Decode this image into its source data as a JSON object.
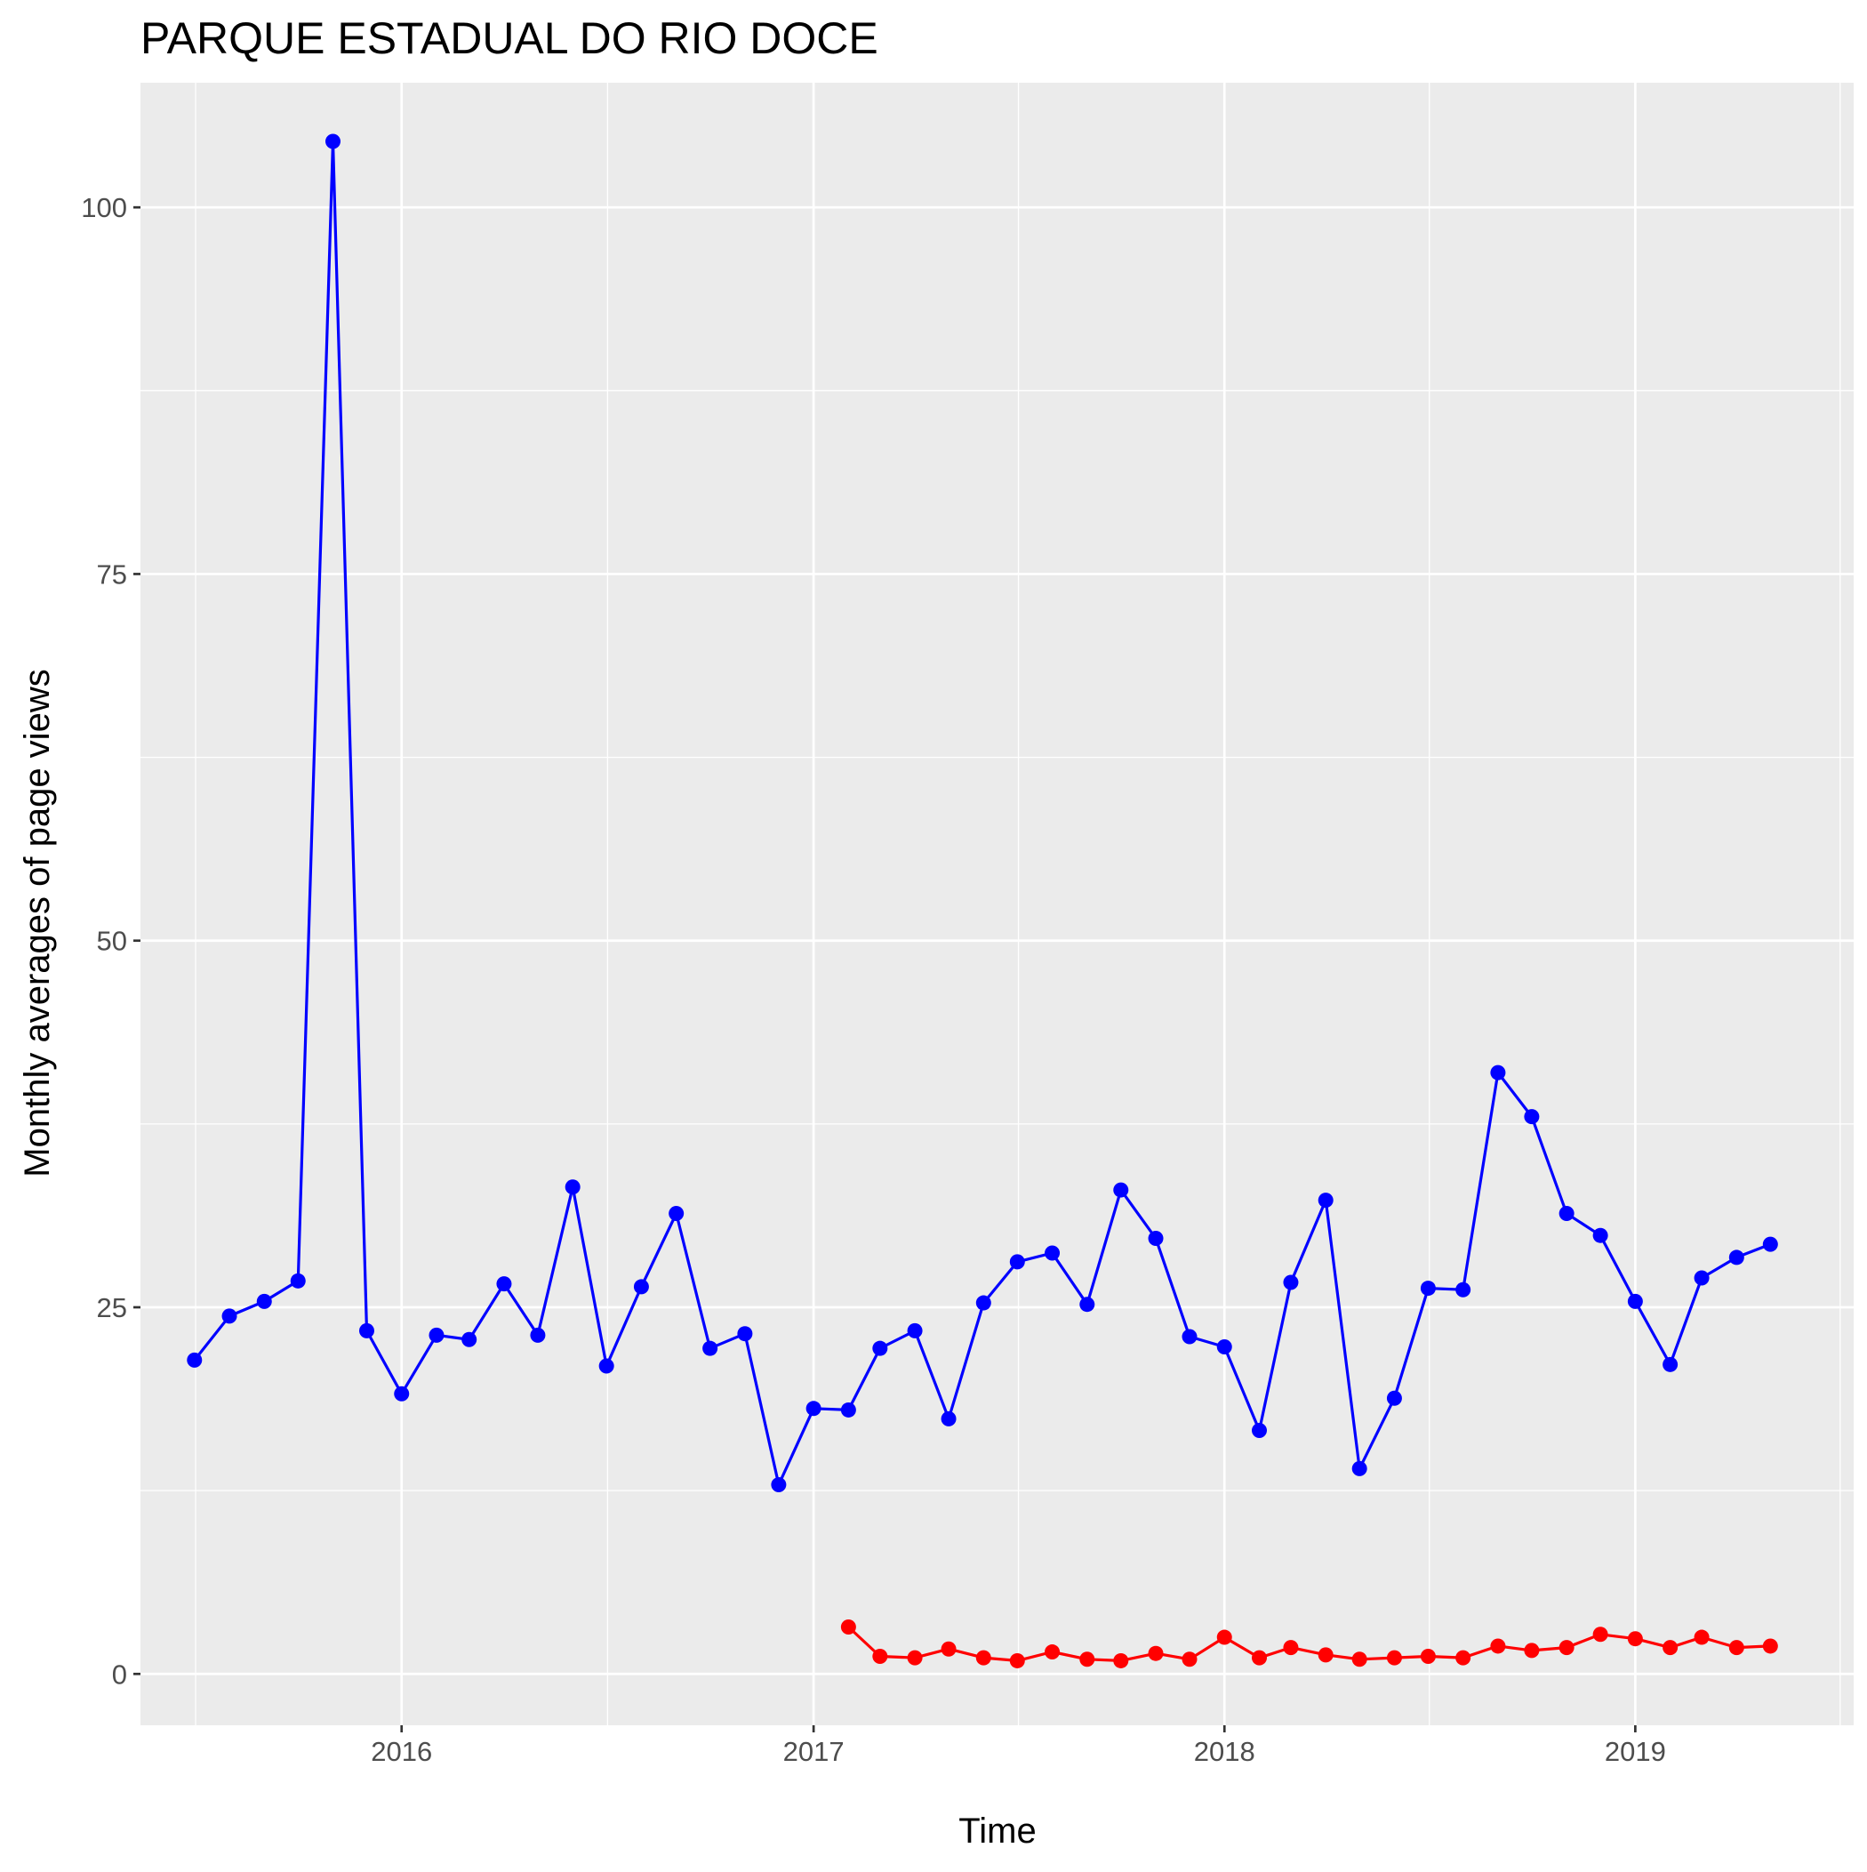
{
  "chart_data": {
    "type": "line",
    "title": "PARQUE ESTADUAL DO RIO DOCE",
    "xlabel": "Time",
    "ylabel": "Monthly averages of page views",
    "xlim": [
      "2015-05-14",
      "2019-07-14"
    ],
    "ylim": [
      -3.5,
      108.5
    ],
    "x_ticks": [
      "2016",
      "2017",
      "2018",
      "2019"
    ],
    "x_tick_dates": [
      "2016-01-01",
      "2017-01-01",
      "2018-01-01",
      "2019-01-01"
    ],
    "y_ticks": [
      0,
      25,
      50,
      75,
      100
    ],
    "grid": true,
    "legend": "none",
    "series": [
      {
        "color": "#0000ff",
        "x": [
          "2015-07-01",
          "2015-08-01",
          "2015-09-01",
          "2015-10-01",
          "2015-11-01",
          "2015-12-01",
          "2016-01-01",
          "2016-02-01",
          "2016-03-01",
          "2016-04-01",
          "2016-05-01",
          "2016-06-01",
          "2016-07-01",
          "2016-08-01",
          "2016-09-01",
          "2016-10-01",
          "2016-11-01",
          "2016-12-01",
          "2017-01-01",
          "2017-02-01",
          "2017-03-01",
          "2017-04-01",
          "2017-05-01",
          "2017-06-01",
          "2017-07-01",
          "2017-08-01",
          "2017-09-01",
          "2017-10-01",
          "2017-11-01",
          "2017-12-01",
          "2018-01-01",
          "2018-02-01",
          "2018-03-01",
          "2018-04-01",
          "2018-05-01",
          "2018-06-01",
          "2018-07-01",
          "2018-08-01",
          "2018-09-01",
          "2018-10-01",
          "2018-11-01",
          "2018-12-01",
          "2019-01-01",
          "2019-02-01",
          "2019-03-01",
          "2019-04-01",
          "2019-05-01"
        ],
        "values": [
          21.4,
          24.4,
          25.4,
          26.8,
          104.5,
          23.4,
          19.1,
          23.1,
          22.8,
          26.6,
          23.1,
          33.2,
          21.0,
          26.4,
          31.4,
          22.2,
          23.2,
          12.9,
          18.1,
          18.0,
          22.2,
          23.4,
          17.4,
          25.3,
          28.1,
          28.7,
          25.2,
          33.0,
          29.7,
          23.0,
          22.3,
          16.6,
          26.7,
          32.3,
          14.0,
          18.8,
          26.3,
          26.2,
          41.0,
          38.0,
          31.4,
          29.9,
          25.4,
          21.1,
          27.0,
          28.4,
          29.3
        ]
      },
      {
        "color": "#ff0000",
        "x": [
          "2017-02-01",
          "2017-03-01",
          "2017-04-01",
          "2017-05-01",
          "2017-06-01",
          "2017-07-01",
          "2017-08-01",
          "2017-09-01",
          "2017-10-01",
          "2017-11-01",
          "2017-12-01",
          "2018-01-01",
          "2018-02-01",
          "2018-03-01",
          "2018-04-01",
          "2018-05-01",
          "2018-06-01",
          "2018-07-01",
          "2018-08-01",
          "2018-09-01",
          "2018-10-01",
          "2018-11-01",
          "2018-12-01",
          "2019-01-01",
          "2019-02-01",
          "2019-03-01",
          "2019-04-01",
          "2019-05-01"
        ],
        "values": [
          3.2,
          1.2,
          1.1,
          1.7,
          1.1,
          0.9,
          1.5,
          1.0,
          0.9,
          1.4,
          1.0,
          2.5,
          1.1,
          1.8,
          1.3,
          1.0,
          1.1,
          1.2,
          1.1,
          1.9,
          1.6,
          1.8,
          2.7,
          2.4,
          1.8,
          2.5,
          1.8,
          1.9
        ]
      }
    ]
  }
}
